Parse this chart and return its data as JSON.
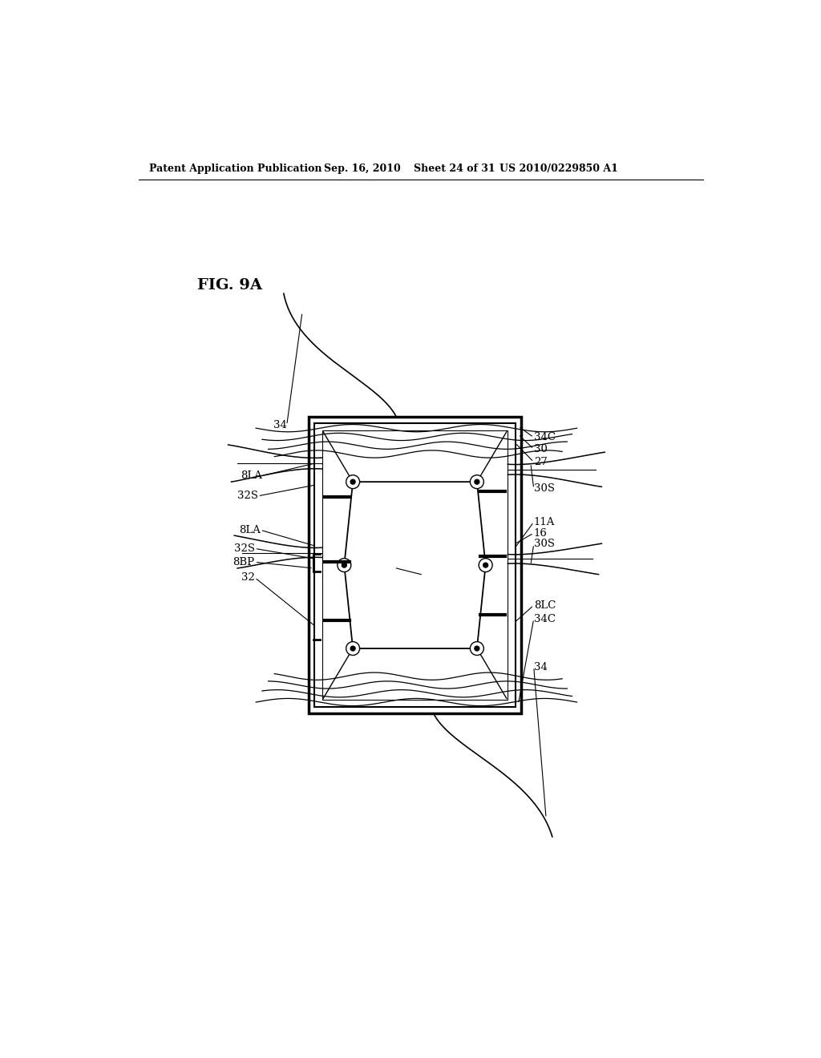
{
  "background_color": "#ffffff",
  "header_text": "Patent Application Publication",
  "header_date": "Sep. 16, 2010",
  "header_sheet": "Sheet 24 of 31",
  "header_patent": "US 2010/0229850 A1",
  "fig_label": "FIG. 9A",
  "page_width": 1.0,
  "page_height": 1.0
}
